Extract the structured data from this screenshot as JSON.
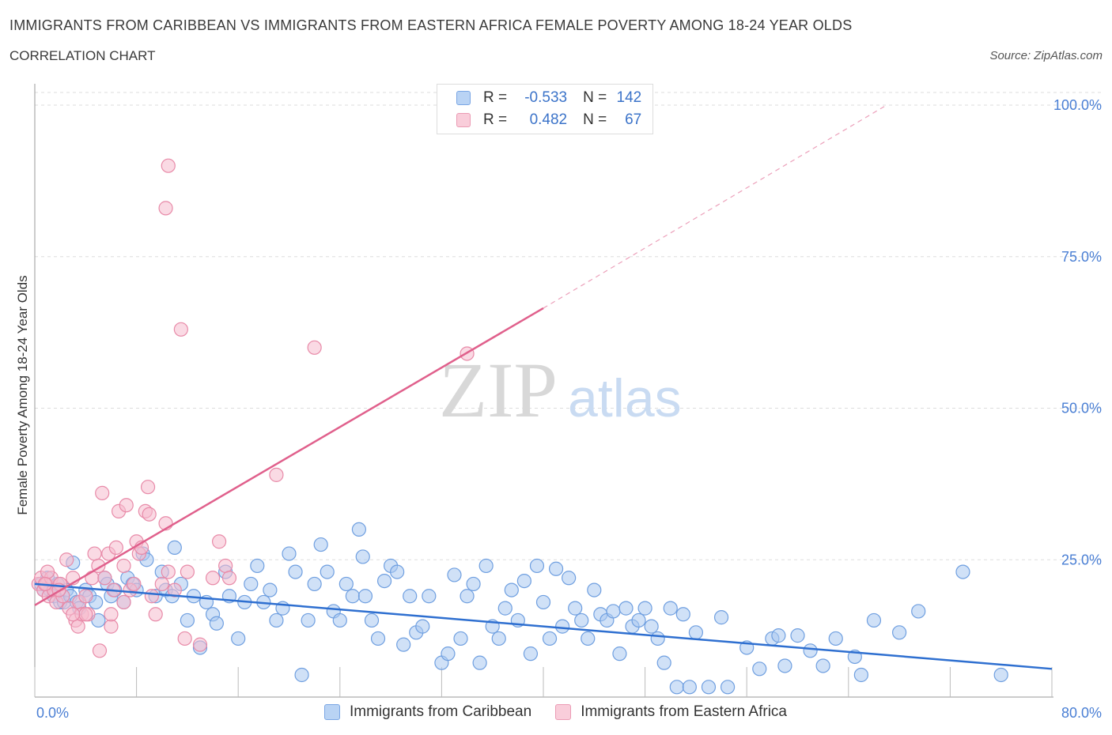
{
  "header": {
    "title": "IMMIGRANTS FROM CARIBBEAN VS IMMIGRANTS FROM EASTERN AFRICA FEMALE POVERTY AMONG 18-24 YEAR OLDS",
    "subtitle": "CORRELATION CHART",
    "source": "Source: ZipAtlas.com"
  },
  "legend": {
    "rows": [
      {
        "r_label": "R =",
        "r_value": "-0.533",
        "n_label": "N =",
        "n_value": "142"
      },
      {
        "r_label": "R =",
        "r_value": "0.482",
        "n_label": "N =",
        "n_value": "67"
      }
    ]
  },
  "bottom_legend": {
    "items": [
      "Immigrants from Caribbean",
      "Immigrants from Eastern Africa"
    ]
  },
  "colors": {
    "blue_fill": "#a9c8f0",
    "blue_stroke": "#6f9fe0",
    "blue_line": "#2e6fd0",
    "pink_fill": "#f6bccd",
    "pink_stroke": "#e88aa8",
    "pink_line": "#e0608c",
    "tick_text": "#4a7fd4",
    "grid": "#dddddd"
  },
  "chart_data": {
    "type": "scatter",
    "title": "IMMIGRANTS FROM CARIBBEAN VS IMMIGRANTS FROM EASTERN AFRICA FEMALE POVERTY AMONG 18-24 YEAR OLDS",
    "ylabel": "Female Poverty Among 18-24 Year Olds",
    "xlabel": "",
    "xlim": [
      0,
      80
    ],
    "ylim": [
      0,
      100
    ],
    "x_tick_labels": [
      "0.0%",
      "80.0%"
    ],
    "y_tick_labels": [
      "100.0%",
      "75.0%",
      "50.0%",
      "25.0%"
    ],
    "y_ticks": [
      100,
      75,
      50,
      25
    ],
    "grid": true,
    "legend_position": "top-center",
    "watermark": {
      "zip": "ZIP",
      "atlas": "atlas"
    },
    "series": [
      {
        "name": "Immigrants from Caribbean",
        "color": "#6f9fe0",
        "trend": {
          "x": [
            0,
            80
          ],
          "y": [
            21.0,
            7.0
          ],
          "extend_to": null
        },
        "points": [
          [
            0.5,
            21
          ],
          [
            0.7,
            20
          ],
          [
            1,
            22
          ],
          [
            1.2,
            20
          ],
          [
            1.5,
            19
          ],
          [
            1.8,
            21
          ],
          [
            2,
            18
          ],
          [
            2.3,
            18
          ],
          [
            2.5,
            20
          ],
          [
            2.8,
            19
          ],
          [
            3,
            24.5
          ],
          [
            3.3,
            18
          ],
          [
            3.5,
            17
          ],
          [
            4,
            20
          ],
          [
            4.3,
            19
          ],
          [
            4.8,
            18
          ],
          [
            5,
            15
          ],
          [
            5.5,
            22
          ],
          [
            5.7,
            21
          ],
          [
            6,
            19
          ],
          [
            6.3,
            20
          ],
          [
            7,
            18
          ],
          [
            7.3,
            22
          ],
          [
            7.7,
            21
          ],
          [
            8,
            20
          ],
          [
            8.5,
            26
          ],
          [
            8.8,
            25
          ],
          [
            9.5,
            19
          ],
          [
            10,
            23
          ],
          [
            10.3,
            20
          ],
          [
            10.8,
            19
          ],
          [
            11,
            27
          ],
          [
            11.5,
            21
          ],
          [
            12,
            15
          ],
          [
            12.5,
            19
          ],
          [
            13,
            10.5
          ],
          [
            13.5,
            18
          ],
          [
            14,
            16
          ],
          [
            14.3,
            14.5
          ],
          [
            15,
            23
          ],
          [
            15.3,
            19
          ],
          [
            16,
            12
          ],
          [
            16.5,
            18
          ],
          [
            17,
            21
          ],
          [
            17.5,
            24
          ],
          [
            18,
            18
          ],
          [
            18.5,
            20
          ],
          [
            19,
            15
          ],
          [
            19.5,
            17
          ],
          [
            20,
            26
          ],
          [
            20.5,
            23
          ],
          [
            21,
            6
          ],
          [
            21.5,
            15
          ],
          [
            22,
            21
          ],
          [
            22.5,
            27.5
          ],
          [
            23,
            23
          ],
          [
            23.5,
            16.5
          ],
          [
            24,
            15
          ],
          [
            24.5,
            21
          ],
          [
            25,
            19
          ],
          [
            25.5,
            30
          ],
          [
            25.8,
            25.5
          ],
          [
            26,
            19
          ],
          [
            26.5,
            15
          ],
          [
            27,
            12
          ],
          [
            27.5,
            21.5
          ],
          [
            28,
            24
          ],
          [
            28.5,
            23
          ],
          [
            29,
            11
          ],
          [
            29.5,
            19
          ],
          [
            30,
            13
          ],
          [
            30.5,
            14
          ],
          [
            31,
            19
          ],
          [
            32,
            8
          ],
          [
            32.5,
            9.5
          ],
          [
            33,
            22.5
          ],
          [
            33.5,
            12
          ],
          [
            34,
            19
          ],
          [
            34.5,
            21
          ],
          [
            35,
            8
          ],
          [
            35.5,
            24
          ],
          [
            36,
            14
          ],
          [
            36.5,
            12
          ],
          [
            37,
            17
          ],
          [
            37.5,
            20
          ],
          [
            38,
            15
          ],
          [
            38.5,
            21.5
          ],
          [
            39,
            9.5
          ],
          [
            39.5,
            24
          ],
          [
            40,
            18
          ],
          [
            40.5,
            12
          ],
          [
            41,
            23.5
          ],
          [
            41.5,
            14
          ],
          [
            42,
            22
          ],
          [
            42.5,
            17
          ],
          [
            43,
            15
          ],
          [
            43.5,
            12
          ],
          [
            44,
            20
          ],
          [
            44.5,
            16
          ],
          [
            45,
            15
          ],
          [
            45.5,
            16.5
          ],
          [
            46,
            9.5
          ],
          [
            46.5,
            17
          ],
          [
            47,
            14
          ],
          [
            47.5,
            15
          ],
          [
            48,
            17
          ],
          [
            48.5,
            14
          ],
          [
            49,
            12
          ],
          [
            49.5,
            8
          ],
          [
            50,
            17
          ],
          [
            50.5,
            4
          ],
          [
            51,
            16
          ],
          [
            51.5,
            4
          ],
          [
            52,
            13
          ],
          [
            53,
            4
          ],
          [
            54,
            15.5
          ],
          [
            54.5,
            4
          ],
          [
            56,
            10.5
          ],
          [
            57,
            7
          ],
          [
            58,
            12
          ],
          [
            58.5,
            12.5
          ],
          [
            59,
            7.5
          ],
          [
            60,
            12.5
          ],
          [
            61,
            10
          ],
          [
            62,
            7.5
          ],
          [
            63,
            12
          ],
          [
            64.5,
            9
          ],
          [
            65,
            6
          ],
          [
            66,
            15
          ],
          [
            68,
            13
          ],
          [
            69.5,
            16.5
          ],
          [
            73,
            23
          ],
          [
            76,
            6
          ]
        ]
      },
      {
        "name": "Immigrants from Eastern Africa",
        "color": "#e88aa8",
        "trend": {
          "x": [
            0,
            40
          ],
          "y": [
            17.5,
            66.5
          ],
          "extend_to": [
            67,
            100
          ]
        },
        "points": [
          [
            0.3,
            21
          ],
          [
            0.5,
            22
          ],
          [
            0.7,
            20
          ],
          [
            0.9,
            21
          ],
          [
            1.1,
            19
          ],
          [
            1.3,
            22
          ],
          [
            1.5,
            20
          ],
          [
            1.7,
            18
          ],
          [
            2,
            21
          ],
          [
            2.2,
            19
          ],
          [
            2.5,
            25
          ],
          [
            2.7,
            17
          ],
          [
            3,
            22
          ],
          [
            3.2,
            15
          ],
          [
            3.4,
            14
          ],
          [
            3.5,
            18
          ],
          [
            3.7,
            16
          ],
          [
            4,
            19
          ],
          [
            4.2,
            16
          ],
          [
            4.5,
            22
          ],
          [
            4.7,
            26
          ],
          [
            5,
            24
          ],
          [
            5.1,
            10
          ],
          [
            5.3,
            36
          ],
          [
            5.5,
            22
          ],
          [
            5.8,
            26
          ],
          [
            6,
            14
          ],
          [
            6.2,
            20
          ],
          [
            6.4,
            27
          ],
          [
            6.6,
            33
          ],
          [
            7,
            18
          ],
          [
            7.2,
            34
          ],
          [
            7.5,
            20
          ],
          [
            7.8,
            21
          ],
          [
            8,
            28
          ],
          [
            8.2,
            26
          ],
          [
            8.4,
            27
          ],
          [
            8.7,
            33
          ],
          [
            9,
            32.5
          ],
          [
            8.9,
            37
          ],
          [
            9.2,
            19
          ],
          [
            9.5,
            16
          ],
          [
            10,
            21
          ],
          [
            10.5,
            23
          ],
          [
            10.3,
            31
          ],
          [
            11,
            20
          ],
          [
            11.5,
            63
          ],
          [
            11.8,
            12
          ],
          [
            12,
            23
          ],
          [
            13,
            11
          ],
          [
            14,
            22
          ],
          [
            14.5,
            28
          ],
          [
            15,
            24
          ],
          [
            15.3,
            22
          ],
          [
            19,
            39
          ],
          [
            22,
            60
          ],
          [
            34,
            59
          ],
          [
            10.5,
            90
          ],
          [
            10.3,
            83
          ],
          [
            2,
            21
          ],
          [
            1,
            23
          ],
          [
            4,
            16
          ],
          [
            6,
            16
          ],
          [
            3,
            16
          ],
          [
            0.8,
            21
          ],
          [
            1.9,
            20
          ],
          [
            7,
            24
          ]
        ]
      }
    ]
  }
}
